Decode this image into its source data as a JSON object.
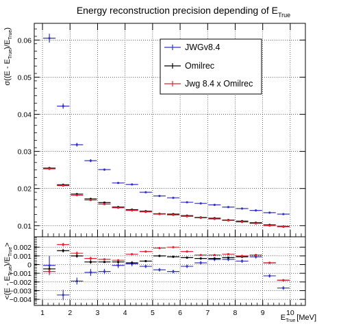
{
  "chart_data": [
    {
      "type": "scatter",
      "panel": "top",
      "title_main": "Energy reconstruction precision depending of E",
      "title_sub": "True",
      "ylabel_parts": [
        "σ((E - E",
        "True",
        ")/E",
        "True",
        ")"
      ],
      "ylim": [
        0.007,
        0.0645
      ],
      "yticks": [
        0.01,
        0.02,
        0.03,
        0.04,
        0.05,
        0.06
      ],
      "ytick_labels": [
        "0.01",
        "0.02",
        "0.03",
        "0.04",
        "0.05",
        "0.06"
      ],
      "grid": true,
      "legend_position": "top-right",
      "series": [
        {
          "name": "JWGv8.4",
          "color": "#3333cc",
          "x": [
            1.25,
            1.75,
            2.25,
            2.75,
            3.25,
            3.75,
            4.25,
            4.75,
            5.25,
            5.75,
            6.25,
            6.75,
            7.25,
            7.75,
            8.25,
            8.75,
            9.25,
            9.75
          ],
          "y": [
            0.0605,
            0.0422,
            0.0318,
            0.0275,
            0.0251,
            0.0215,
            0.0211,
            0.019,
            0.018,
            0.0175,
            0.0163,
            0.016,
            0.0156,
            0.015,
            0.0146,
            0.0141,
            0.0135,
            0.0131
          ],
          "yerr": [
            0.0012,
            0.0007,
            0.0005,
            0.0004,
            0.0003,
            0.0002,
            0.0002,
            0.0002,
            0.0002,
            0.0002,
            0.0002,
            0.0002,
            0.0002,
            0.0002,
            0.0002,
            0.0002,
            0.0002,
            0.0002
          ]
        },
        {
          "name": "Omilrec",
          "color": "#000000",
          "x": [
            1.25,
            1.75,
            2.25,
            2.75,
            3.25,
            3.75,
            4.25,
            4.75,
            5.25,
            5.75,
            6.25,
            6.75,
            7.25,
            7.75,
            8.25,
            8.75,
            9.25,
            9.75
          ],
          "y": [
            0.0255,
            0.021,
            0.0185,
            0.0172,
            0.0162,
            0.015,
            0.0143,
            0.0139,
            0.0132,
            0.0131,
            0.0127,
            0.0122,
            0.012,
            0.0115,
            0.0112,
            0.0108,
            0.0102,
            0.0098
          ],
          "yerr": [
            0.0003,
            0.0002,
            0.0002,
            0.0002,
            0.0001,
            0.0001,
            0.0001,
            0.0001,
            0.0001,
            0.0001,
            0.0001,
            0.0001,
            0.0001,
            0.0001,
            0.0001,
            0.0001,
            0.0001,
            0.0001
          ]
        },
        {
          "name": "Jwg 8.4 x Omilrec",
          "color": "#e8202c",
          "x": [
            1.25,
            1.75,
            2.25,
            2.75,
            3.25,
            3.75,
            4.25,
            4.75,
            5.25,
            5.75,
            6.25,
            6.75,
            7.25,
            7.75,
            8.25,
            8.75,
            9.25,
            9.75
          ],
          "y": [
            0.0253,
            0.0208,
            0.0182,
            0.0169,
            0.0158,
            0.0148,
            0.0141,
            0.0137,
            0.0131,
            0.0129,
            0.0125,
            0.0121,
            0.0118,
            0.0114,
            0.011,
            0.0106,
            0.01,
            0.0097
          ],
          "yerr": [
            0.0003,
            0.0002,
            0.0002,
            0.0002,
            0.0001,
            0.0001,
            0.0001,
            0.0001,
            0.0001,
            0.0001,
            0.0001,
            0.0001,
            0.0001,
            0.0001,
            0.0001,
            0.0001,
            0.0001,
            0.0001
          ]
        }
      ]
    },
    {
      "type": "scatter",
      "panel": "bottom",
      "ylabel_parts": [
        "<(E - E",
        "True",
        ")/E",
        "True",
        ">"
      ],
      "xlabel_main": "E",
      "xlabel_sub": "True",
      "xlabel_unit": "[MeV]",
      "xlim": [
        0.7,
        10.55
      ],
      "xticks": [
        1,
        2,
        3,
        4,
        5,
        6,
        7,
        8,
        9,
        10
      ],
      "xtick_labels": [
        "1",
        "2",
        "3",
        "4",
        "5",
        "6",
        "7",
        "8",
        "9",
        "10"
      ],
      "ylim": [
        -0.0047,
        0.0032
      ],
      "yticks": [
        -0.004,
        -0.003,
        -0.002,
        -0.001,
        0,
        0.001,
        0.002
      ],
      "ytick_labels": [
        "−0.004",
        "−0.003",
        "−0.002",
        "−0.001",
        "0",
        "0.001",
        "0.002"
      ],
      "grid": true,
      "series": [
        {
          "name": "JWGv8.4",
          "color": "#3333cc",
          "x": [
            1.25,
            1.75,
            2.25,
            2.75,
            3.25,
            3.75,
            4.25,
            4.75,
            5.25,
            5.75,
            6.25,
            6.75,
            7.25,
            7.75,
            8.25,
            8.75,
            9.25,
            9.75
          ],
          "y": [
            -0.0001,
            -0.0035,
            -0.0019,
            -0.0009,
            -0.0008,
            -0.0001,
            0.0001,
            -0.0002,
            -0.0006,
            -0.0008,
            -0.0002,
            0.0002,
            0.0006,
            0.0006,
            0.0004,
            0.0009,
            -0.0013,
            -0.0027
          ],
          "yerr": [
            0.0011,
            0.0006,
            0.0004,
            0.0004,
            0.0003,
            0.0003,
            0.0003,
            0.0002,
            0.0002,
            0.0002,
            0.0002,
            0.0002,
            0.0002,
            0.0002,
            0.0002,
            0.0002,
            0.0002,
            0.0002
          ]
        },
        {
          "name": "Omilrec",
          "color": "#000000",
          "x": [
            1.25,
            1.75,
            2.25,
            2.75,
            3.25,
            3.75,
            4.25,
            4.75,
            5.25,
            5.75,
            6.25,
            6.75,
            7.25,
            7.75,
            8.25,
            8.75,
            9.25,
            9.75
          ],
          "y": [
            -0.0005,
            0.0016,
            0.001,
            0.0003,
            0.0003,
            0.0003,
            0.0002,
            0.0004,
            0.001,
            0.0009,
            0.0008,
            0.0007,
            0.0007,
            0.0008,
            0.0009,
            0.0011,
            0.0002,
            -0.0018
          ],
          "yerr": [
            0.0003,
            0.0002,
            0.0002,
            0.0002,
            0.0001,
            0.0001,
            0.0001,
            0.0001,
            0.0001,
            0.0001,
            0.0001,
            0.0001,
            0.0001,
            0.0001,
            0.0001,
            0.0001,
            0.0001,
            0.0001
          ]
        },
        {
          "name": "Jwg 8.4 x Omilrec",
          "color": "#e8202c",
          "x": [
            1.25,
            1.75,
            2.25,
            2.75,
            3.25,
            3.75,
            4.25,
            4.75,
            5.25,
            5.75,
            6.25,
            6.75,
            7.25,
            7.75,
            8.25,
            8.75,
            9.25,
            9.75
          ],
          "y": [
            -0.0008,
            0.0023,
            0.0013,
            0.0007,
            0.0006,
            0.0005,
            0.0012,
            0.0015,
            0.0019,
            0.002,
            0.0015,
            0.0011,
            0.0011,
            0.0012,
            0.001,
            0.0011,
            0.0002,
            -0.0018
          ],
          "yerr": [
            0.0003,
            0.0002,
            0.0002,
            0.0002,
            0.0001,
            0.0001,
            0.0001,
            0.0001,
            0.0001,
            0.0001,
            0.0001,
            0.0001,
            0.0001,
            0.0001,
            0.0001,
            0.0001,
            0.0001,
            0.0001
          ]
        }
      ]
    }
  ]
}
